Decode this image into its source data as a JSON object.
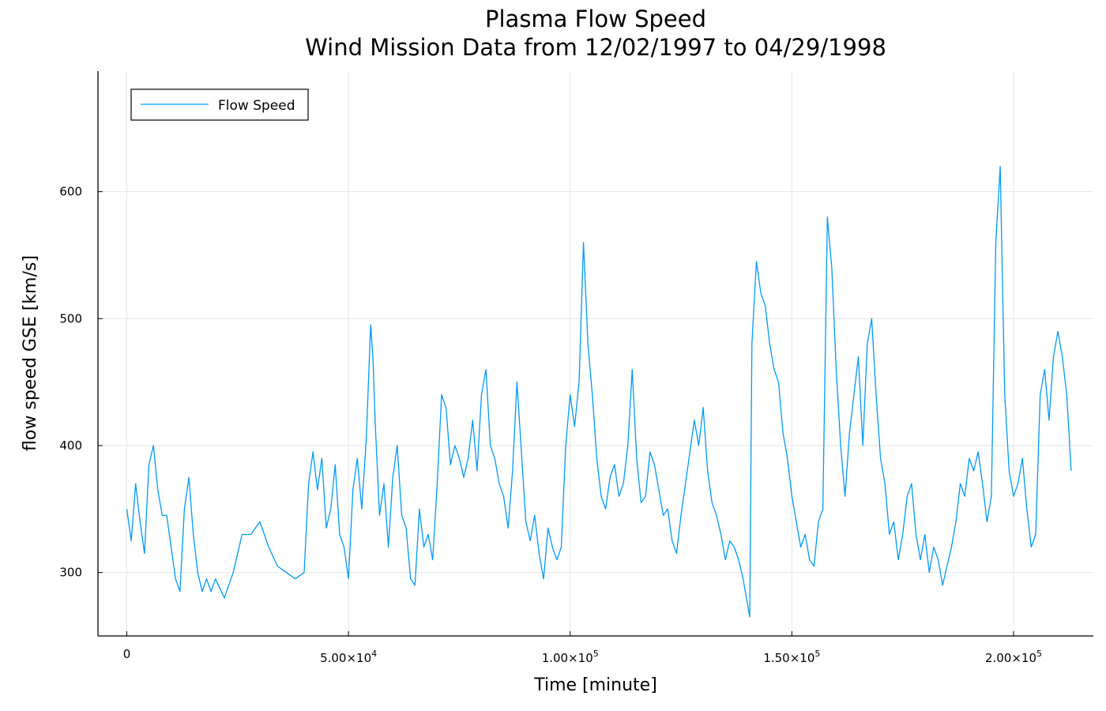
{
  "chart_data": {
    "type": "line",
    "title": "Plasma Flow Speed",
    "subtitle": "Wind Mission Data from 12/02/1997 to 04/29/1998",
    "xlabel": "Time [minute]",
    "ylabel": "flow speed GSE [km/s]",
    "xlim": [
      -6500,
      218000
    ],
    "ylim": [
      250,
      695
    ],
    "grid": true,
    "legend_position": "top-left",
    "x_ticks": [
      {
        "value": 0,
        "base": "0",
        "exp": ""
      },
      {
        "value": 50000,
        "base": "5.00×10",
        "exp": "4"
      },
      {
        "value": 100000,
        "base": "1.00×10",
        "exp": "5"
      },
      {
        "value": 150000,
        "base": "1.50×10",
        "exp": "5"
      },
      {
        "value": 200000,
        "base": "2.00×10",
        "exp": "5"
      }
    ],
    "y_ticks": [
      {
        "value": 300,
        "label": "300"
      },
      {
        "value": 400,
        "label": "400"
      },
      {
        "value": 500,
        "label": "500"
      },
      {
        "value": 600,
        "label": "600"
      }
    ],
    "series": [
      {
        "name": "Flow Speed",
        "color": "#009af9",
        "points": [
          [
            0,
            350
          ],
          [
            1000,
            325
          ],
          [
            2000,
            370
          ],
          [
            3000,
            340
          ],
          [
            4000,
            315
          ],
          [
            5000,
            385
          ],
          [
            6000,
            400
          ],
          [
            7000,
            365
          ],
          [
            8000,
            345
          ],
          [
            9000,
            345
          ],
          [
            10000,
            320
          ],
          [
            11000,
            295
          ],
          [
            12000,
            285
          ],
          [
            13000,
            350
          ],
          [
            14000,
            375
          ],
          [
            15000,
            330
          ],
          [
            16000,
            300
          ],
          [
            17000,
            285
          ],
          [
            18000,
            295
          ],
          [
            19000,
            285
          ],
          [
            20000,
            295
          ],
          [
            22000,
            280
          ],
          [
            24000,
            300
          ],
          [
            26000,
            330
          ],
          [
            28000,
            330
          ],
          [
            30000,
            340
          ],
          [
            32000,
            320
          ],
          [
            34000,
            305
          ],
          [
            36000,
            300
          ],
          [
            38000,
            295
          ],
          [
            40000,
            300
          ],
          [
            41000,
            370
          ],
          [
            42000,
            395
          ],
          [
            43000,
            365
          ],
          [
            44000,
            390
          ],
          [
            45000,
            335
          ],
          [
            46000,
            350
          ],
          [
            47000,
            385
          ],
          [
            48000,
            330
          ],
          [
            49000,
            320
          ],
          [
            50000,
            295
          ],
          [
            51000,
            365
          ],
          [
            52000,
            390
          ],
          [
            53000,
            350
          ],
          [
            54000,
            405
          ],
          [
            55000,
            495
          ],
          [
            55500,
            470
          ],
          [
            56000,
            420
          ],
          [
            57000,
            345
          ],
          [
            58000,
            370
          ],
          [
            59000,
            320
          ],
          [
            60000,
            375
          ],
          [
            61000,
            400
          ],
          [
            62000,
            345
          ],
          [
            63000,
            335
          ],
          [
            64000,
            295
          ],
          [
            65000,
            290
          ],
          [
            66000,
            350
          ],
          [
            67000,
            320
          ],
          [
            68000,
            330
          ],
          [
            69000,
            310
          ],
          [
            70000,
            370
          ],
          [
            71000,
            440
          ],
          [
            72000,
            430
          ],
          [
            73000,
            385
          ],
          [
            74000,
            400
          ],
          [
            75000,
            390
          ],
          [
            76000,
            375
          ],
          [
            77000,
            390
          ],
          [
            78000,
            420
          ],
          [
            79000,
            380
          ],
          [
            80000,
            440
          ],
          [
            81000,
            460
          ],
          [
            82000,
            400
          ],
          [
            83000,
            390
          ],
          [
            84000,
            370
          ],
          [
            85000,
            360
          ],
          [
            86000,
            335
          ],
          [
            87000,
            380
          ],
          [
            88000,
            450
          ],
          [
            89000,
            395
          ],
          [
            90000,
            340
          ],
          [
            91000,
            325
          ],
          [
            92000,
            345
          ],
          [
            93000,
            315
          ],
          [
            94000,
            295
          ],
          [
            95000,
            335
          ],
          [
            96000,
            320
          ],
          [
            97000,
            310
          ],
          [
            98000,
            320
          ],
          [
            99000,
            400
          ],
          [
            100000,
            440
          ],
          [
            101000,
            415
          ],
          [
            102000,
            450
          ],
          [
            103000,
            560
          ],
          [
            104000,
            480
          ],
          [
            105000,
            440
          ],
          [
            106000,
            390
          ],
          [
            107000,
            360
          ],
          [
            108000,
            350
          ],
          [
            109000,
            375
          ],
          [
            110000,
            385
          ],
          [
            111000,
            360
          ],
          [
            112000,
            370
          ],
          [
            113000,
            400
          ],
          [
            114000,
            460
          ],
          [
            115000,
            390
          ],
          [
            116000,
            355
          ],
          [
            117000,
            360
          ],
          [
            118000,
            395
          ],
          [
            119000,
            385
          ],
          [
            120000,
            365
          ],
          [
            121000,
            345
          ],
          [
            122000,
            350
          ],
          [
            123000,
            325
          ],
          [
            124000,
            315
          ],
          [
            125000,
            345
          ],
          [
            126000,
            370
          ],
          [
            127000,
            395
          ],
          [
            128000,
            420
          ],
          [
            129000,
            400
          ],
          [
            130000,
            430
          ],
          [
            131000,
            380
          ],
          [
            132000,
            355
          ],
          [
            133000,
            345
          ],
          [
            134000,
            330
          ],
          [
            135000,
            310
          ],
          [
            136000,
            325
          ],
          [
            137000,
            320
          ],
          [
            138000,
            310
          ],
          [
            139000,
            295
          ],
          [
            140000,
            275
          ],
          [
            140500,
            265
          ],
          [
            141000,
            480
          ],
          [
            142000,
            545
          ],
          [
            143000,
            520
          ],
          [
            144000,
            510
          ],
          [
            145000,
            480
          ],
          [
            146000,
            460
          ],
          [
            147000,
            450
          ],
          [
            148000,
            410
          ],
          [
            149000,
            390
          ],
          [
            150000,
            360
          ],
          [
            151000,
            340
          ],
          [
            152000,
            320
          ],
          [
            153000,
            330
          ],
          [
            154000,
            310
          ],
          [
            155000,
            305
          ],
          [
            156000,
            340
          ],
          [
            157000,
            350
          ],
          [
            158000,
            580
          ],
          [
            159000,
            540
          ],
          [
            160000,
            460
          ],
          [
            161000,
            400
          ],
          [
            162000,
            360
          ],
          [
            163000,
            410
          ],
          [
            164000,
            440
          ],
          [
            165000,
            470
          ],
          [
            166000,
            400
          ],
          [
            167000,
            480
          ],
          [
            168000,
            500
          ],
          [
            169000,
            440
          ],
          [
            170000,
            390
          ],
          [
            171000,
            370
          ],
          [
            172000,
            330
          ],
          [
            173000,
            340
          ],
          [
            174000,
            310
          ],
          [
            175000,
            330
          ],
          [
            176000,
            360
          ],
          [
            177000,
            370
          ],
          [
            178000,
            330
          ],
          [
            179000,
            310
          ],
          [
            180000,
            330
          ],
          [
            181000,
            300
          ],
          [
            182000,
            320
          ],
          [
            183000,
            310
          ],
          [
            184000,
            290
          ],
          [
            185000,
            305
          ],
          [
            186000,
            320
          ],
          [
            187000,
            340
          ],
          [
            188000,
            370
          ],
          [
            189000,
            360
          ],
          [
            190000,
            390
          ],
          [
            191000,
            380
          ],
          [
            192000,
            395
          ],
          [
            193000,
            370
          ],
          [
            194000,
            340
          ],
          [
            195000,
            360
          ],
          [
            196000,
            560
          ],
          [
            197000,
            620
          ],
          [
            197500,
            530
          ],
          [
            198000,
            440
          ],
          [
            199000,
            380
          ],
          [
            200000,
            360
          ],
          [
            201000,
            370
          ],
          [
            202000,
            390
          ],
          [
            203000,
            350
          ],
          [
            204000,
            320
          ],
          [
            205000,
            330
          ],
          [
            206000,
            440
          ],
          [
            207000,
            460
          ],
          [
            208000,
            420
          ],
          [
            209000,
            470
          ],
          [
            210000,
            490
          ],
          [
            211000,
            470
          ],
          [
            212000,
            440
          ],
          [
            213000,
            380
          ]
        ]
      }
    ]
  }
}
